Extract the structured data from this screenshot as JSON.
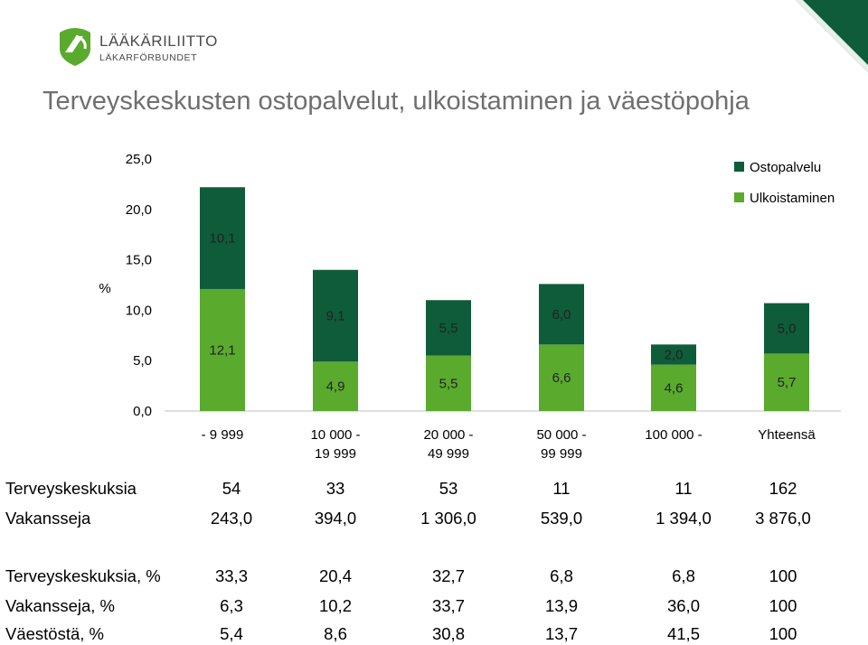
{
  "logo": {
    "line1": "LÄÄKÄRILIITTO",
    "line2": "LÄKARFÖRBUNDET"
  },
  "title": "Terveyskeskusten ostopalvelut, ulkoistaminen ja väestöpohja",
  "colors": {
    "ostopalvelu": "#0e5c3a",
    "ulkoistaminen": "#5aaa2e",
    "corner": "#0e5c3a"
  },
  "chart_data": {
    "type": "bar",
    "stacked": true,
    "ylabel": "%",
    "ylim": [
      0,
      25
    ],
    "yticks": [
      "0,0",
      "5,0",
      "10,0",
      "15,0",
      "20,0",
      "25,0"
    ],
    "categories": [
      [
        "- 9 999"
      ],
      [
        "10 000 -",
        "19 999"
      ],
      [
        "20 000 -",
        "49 999"
      ],
      [
        "50 000 -",
        "99 999"
      ],
      [
        "100 000 -"
      ],
      [
        "Yhteensä"
      ]
    ],
    "series": [
      {
        "name": "Ulkoistaminen",
        "values": [
          12.1,
          4.9,
          5.5,
          6.6,
          4.6,
          5.7
        ],
        "labels": [
          "12,1",
          "4,9",
          "5,5",
          "6,6",
          "4,6",
          "5,7"
        ]
      },
      {
        "name": "Ostopalvelu",
        "values": [
          10.1,
          9.1,
          5.5,
          6.0,
          2.0,
          5.0
        ],
        "labels": [
          "10,1",
          "9,1",
          "5,5",
          "6,0",
          "2,0",
          "5,0"
        ]
      }
    ],
    "legend": [
      "Ostopalvelu",
      "Ulkoistaminen"
    ],
    "legend_position": "top-right",
    "grid": false
  },
  "table1": [
    {
      "label": "Terveyskeskuksia",
      "values": [
        "54",
        "33",
        "53",
        "11",
        "11",
        "162"
      ]
    },
    {
      "label": "Vakansseja",
      "values": [
        "243,0",
        "394,0",
        "1 306,0",
        "539,0",
        "1 394,0",
        "3 876,0"
      ]
    }
  ],
  "table2": [
    {
      "label": "Terveyskeskuksia, %",
      "values": [
        "33,3",
        "20,4",
        "32,7",
        "6,8",
        "6,8",
        "100"
      ]
    },
    {
      "label": "Vakansseja, %",
      "values": [
        "6,3",
        "10,2",
        "33,7",
        "13,9",
        "36,0",
        "100"
      ]
    },
    {
      "label": "Väestöstä, %",
      "values": [
        "5,4",
        "8,6",
        "30,8",
        "13,7",
        "41,5",
        "100"
      ]
    }
  ]
}
